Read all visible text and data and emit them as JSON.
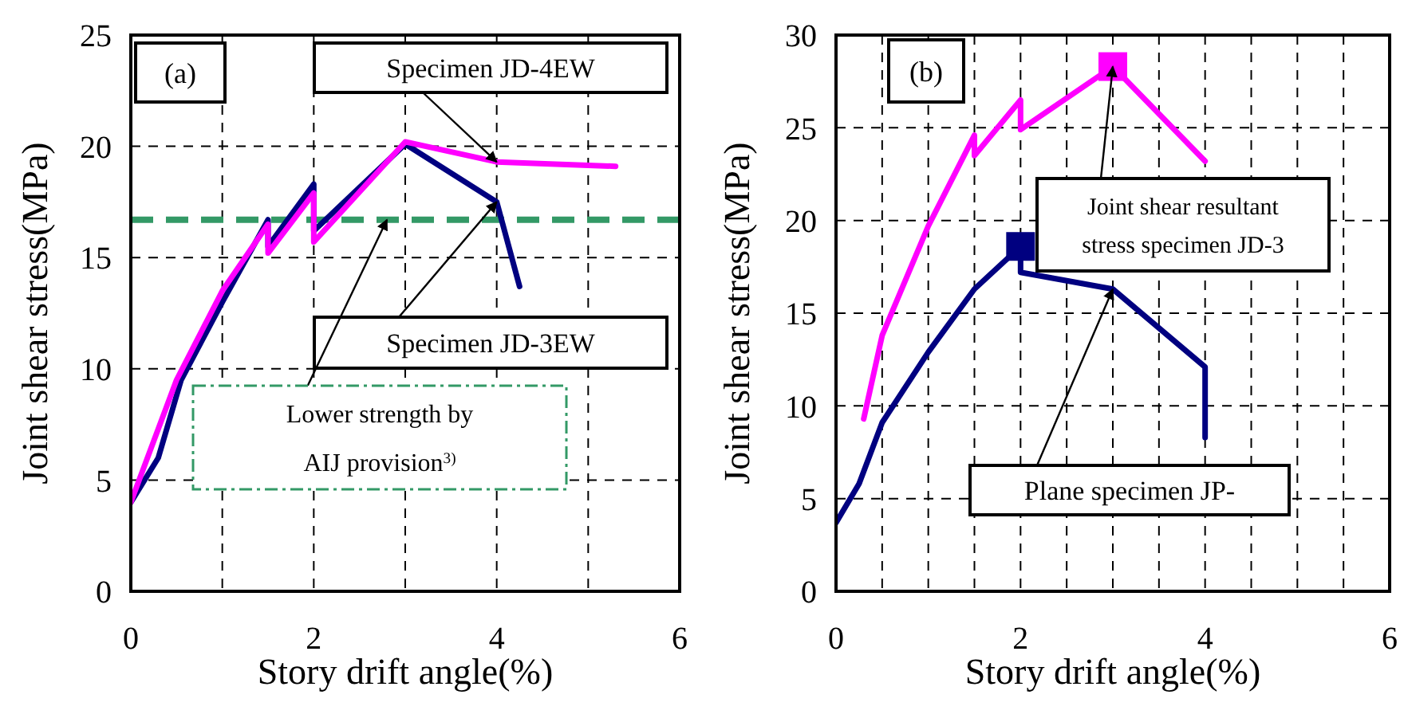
{
  "chart_data": [
    {
      "type": "line",
      "xlabel": "Story drift angle(%)",
      "ylabel": "Joint shear stress(MPa)",
      "xlim": [
        0,
        6
      ],
      "xticks": [
        0,
        {
          "value": 1,
          "label": null
        },
        2,
        {
          "value": 3,
          "label": null
        },
        4,
        {
          "value": 5,
          "label": null
        },
        6
      ],
      "ylim": [
        0,
        25
      ],
      "yticks": [
        0,
        5,
        10,
        15,
        20,
        25
      ],
      "grid": true,
      "legend": false,
      "marker": "none",
      "line_style": "solid",
      "series": [
        {
          "color": "#000080",
          "x": [
            0,
            0.3,
            0.55,
            1,
            1.5,
            1.5,
            2,
            2,
            3,
            4,
            4.25
          ],
          "values": [
            4,
            6,
            9.5,
            13,
            16.7,
            15.5,
            18.3,
            16.2,
            20.1,
            17.5,
            13.7
          ]
        },
        {
          "color": "#ff00ff",
          "x": [
            0,
            0.5,
            1,
            1.5,
            1.5,
            2,
            2,
            3,
            4,
            5.3
          ],
          "values": [
            4,
            9.5,
            13.5,
            16.5,
            15.2,
            17.9,
            15.7,
            20.2,
            19.3,
            19.1
          ]
        }
      ],
      "ref_lines": [
        {
          "axis": "y",
          "value": 16.7,
          "color": "#339966",
          "line_style": "dashed"
        }
      ],
      "annotations": [
        "(a)",
        {
          "text": "Specimen JD-4EW",
          "x": 4,
          "y": 19.3
        },
        {
          "text": "Specimen JD-3EW",
          "x": 4,
          "y": 17.5
        },
        {
          "text": "Lower strength by AIJ provision$^{3)}$",
          "x": 2.8,
          "y": 16.7
        }
      ]
    },
    {
      "type": "line",
      "xlabel": "Story drift angle(%)",
      "ylabel": "Joint shear stress(MPa)",
      "xlim": [
        0,
        6
      ],
      "xticks": [
        0,
        {
          "value": 0.5,
          "label": null
        },
        {
          "value": 1,
          "label": null
        },
        {
          "value": 1.5,
          "label": null
        },
        2,
        {
          "value": 2.5,
          "label": null
        },
        {
          "value": 3,
          "label": null
        },
        {
          "value": 3.5,
          "label": null
        },
        4,
        {
          "value": 4.5,
          "label": null
        },
        {
          "value": 5,
          "label": null
        },
        {
          "value": 5.5,
          "label": null
        },
        6
      ],
      "ylim": [
        0,
        30
      ],
      "yticks": [
        0,
        5,
        10,
        15,
        20,
        25,
        30
      ],
      "grid": true,
      "legend": false,
      "marker": "none",
      "line_style": "solid",
      "series": [
        {
          "color": "#ff00ff",
          "x": [
            0.3,
            0.5,
            1,
            1.5,
            1.5,
            2,
            2,
            3,
            4
          ],
          "values": [
            9.3,
            13.8,
            19.7,
            24.6,
            23.5,
            26.5,
            24.9,
            28.3,
            23.2
          ]
        },
        {
          "color": "#000080",
          "x": [
            0,
            0.25,
            0.5,
            1,
            1.5,
            2,
            2,
            3,
            4,
            4
          ],
          "values": [
            3.7,
            5.8,
            9.1,
            12.9,
            16.3,
            18.6,
            17.2,
            16.3,
            12.1,
            8.3
          ]
        },
        {
          "type": "scatter",
          "marker": "square",
          "x": [
            3,
            2
          ],
          "values": [
            28.3,
            18.6
          ],
          "colors": [
            "#ff00ff",
            "#000080"
          ]
        }
      ],
      "annotations": [
        "(b)",
        {
          "text": "Joint shear resultant stress specimen JD-3",
          "x": 3,
          "y": 28.3
        },
        {
          "text": "Plane specimen JP-",
          "x": 3,
          "y": 16.3
        }
      ]
    }
  ]
}
